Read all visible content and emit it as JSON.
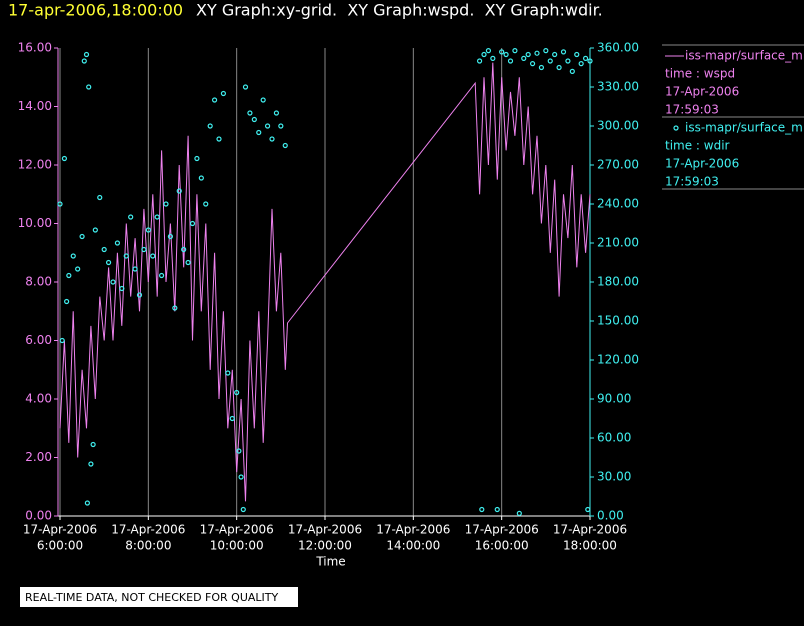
{
  "chart_data": {
    "type": "xy",
    "title": "17-apr-2006,18:00:00",
    "subtitle": "XY Graph:xy-grid.  XY Graph:wspd.  XY Graph:wdir.",
    "x_label": "Time",
    "note": "REAL-TIME DATA, NOT CHECKED FOR QUALITY",
    "grid": true,
    "xlim": [
      6,
      18
    ],
    "xticks": [
      {
        "value": 6,
        "label": [
          "17-Apr-2006",
          "6:00:00"
        ]
      },
      {
        "value": 8,
        "label": [
          "17-Apr-2006",
          "8:00:00"
        ]
      },
      {
        "value": 10,
        "label": [
          "17-Apr-2006",
          "10:00:00"
        ]
      },
      {
        "value": 12,
        "label": [
          "17-Apr-2006",
          "12:00:00"
        ]
      },
      {
        "value": 14,
        "label": [
          "17-Apr-2006",
          "14:00:00"
        ]
      },
      {
        "value": 16,
        "label": [
          "17-Apr-2006",
          "16:00:00"
        ]
      },
      {
        "value": 18,
        "label": [
          "17-Apr-2006",
          "18:00:00"
        ]
      }
    ],
    "ylim": [
      0,
      16
    ],
    "yticks": [
      {
        "value": 0,
        "label": "0.00"
      },
      {
        "value": 2,
        "label": "2.00"
      },
      {
        "value": 4,
        "label": "4.00"
      },
      {
        "value": 6,
        "label": "6.00"
      },
      {
        "value": 8,
        "label": "8.00"
      },
      {
        "value": 10,
        "label": "10.00"
      },
      {
        "value": 12,
        "label": "12.00"
      },
      {
        "value": 14,
        "label": "14.00"
      },
      {
        "value": 16,
        "label": "16.00"
      }
    ],
    "y2lim": [
      0,
      360
    ],
    "y2ticks": [
      {
        "value": 0,
        "label": "0.00"
      },
      {
        "value": 30,
        "label": "30.00"
      },
      {
        "value": 60,
        "label": "60.00"
      },
      {
        "value": 90,
        "label": "90.00"
      },
      {
        "value": 120,
        "label": "120.00"
      },
      {
        "value": 150,
        "label": "150.00"
      },
      {
        "value": 180,
        "label": "180.00"
      },
      {
        "value": 210,
        "label": "210.00"
      },
      {
        "value": 240,
        "label": "240.00"
      },
      {
        "value": 270,
        "label": "270.00"
      },
      {
        "value": 300,
        "label": "300.00"
      },
      {
        "value": 330,
        "label": "330.00"
      },
      {
        "value": 360,
        "label": "360.00"
      }
    ],
    "series": [
      {
        "name": "iss-mapr/surface_m",
        "style": "line",
        "color": "#ee82ee",
        "legend_lines": [
          "time : wspd",
          "17-Apr-2006",
          "17:59:03"
        ],
        "x": [
          6.0,
          6.1,
          6.2,
          6.3,
          6.4,
          6.5,
          6.6,
          6.7,
          6.8,
          6.9,
          7.0,
          7.1,
          7.2,
          7.3,
          7.4,
          7.5,
          7.6,
          7.7,
          7.8,
          7.9,
          8.0,
          8.1,
          8.2,
          8.3,
          8.4,
          8.5,
          8.6,
          8.7,
          8.8,
          8.9,
          9.0,
          9.1,
          9.2,
          9.3,
          9.4,
          9.5,
          9.6,
          9.7,
          9.8,
          9.9,
          10.0,
          10.1,
          10.2,
          10.3,
          10.4,
          10.5,
          10.6,
          10.7,
          10.8,
          10.9,
          11.0,
          11.1,
          11.15,
          15.4,
          15.5,
          15.6,
          15.7,
          15.8,
          15.9,
          16.0,
          16.1,
          16.2,
          16.3,
          16.4,
          16.5,
          16.6,
          16.7,
          16.8,
          16.9,
          17.0,
          17.1,
          17.2,
          17.3,
          17.4,
          17.5,
          17.6,
          17.7,
          17.8,
          17.9,
          18.0
        ],
        "values": [
          3,
          6,
          2.5,
          7,
          2,
          5,
          3,
          6.5,
          4,
          7.5,
          6,
          8.5,
          6,
          9,
          6.5,
          10,
          7.5,
          9.5,
          7,
          10.5,
          8,
          11,
          7.5,
          12.5,
          8,
          10,
          7,
          12,
          8.5,
          13,
          6,
          11,
          7,
          10,
          5,
          9,
          4,
          7,
          3,
          5,
          1.5,
          4,
          0.5,
          6,
          3,
          7,
          2.5,
          6,
          10.5,
          7,
          9,
          5,
          6.6,
          14.8,
          11,
          15,
          12,
          15.5,
          11.5,
          15,
          12.5,
          14.5,
          13,
          15,
          12,
          14,
          11,
          13,
          10,
          12,
          9,
          11.5,
          7.5,
          11,
          9.5,
          12,
          8.5,
          11,
          9,
          11
        ]
      },
      {
        "name": "iss-mapr/surface_m",
        "style": "markers",
        "axis": "y2",
        "color": "#40f0f0",
        "legend_lines": [
          "time : wdir",
          "17-Apr-2006",
          "17:59:03"
        ],
        "x": [
          6.0,
          6.05,
          6.1,
          6.15,
          6.2,
          6.3,
          6.4,
          6.5,
          6.55,
          6.6,
          6.62,
          6.65,
          6.7,
          6.75,
          6.8,
          6.9,
          7.0,
          7.1,
          7.2,
          7.3,
          7.4,
          7.5,
          7.6,
          7.7,
          7.8,
          7.9,
          8.0,
          8.1,
          8.2,
          8.3,
          8.4,
          8.5,
          8.6,
          8.7,
          8.8,
          8.9,
          9.0,
          9.1,
          9.2,
          9.3,
          9.4,
          9.5,
          9.6,
          9.7,
          9.8,
          9.9,
          10.0,
          10.05,
          10.1,
          10.15,
          10.2,
          10.3,
          10.4,
          10.5,
          10.6,
          10.7,
          10.8,
          10.9,
          11.0,
          11.1,
          15.5,
          15.55,
          15.6,
          15.7,
          15.8,
          15.9,
          16.0,
          16.1,
          16.2,
          16.3,
          16.4,
          16.5,
          16.6,
          16.7,
          16.8,
          16.9,
          17.0,
          17.1,
          17.2,
          17.3,
          17.4,
          17.5,
          17.6,
          17.7,
          17.8,
          17.9,
          17.95,
          18.0
        ],
        "values": [
          240,
          135,
          275,
          165,
          185,
          200,
          190,
          215,
          350,
          355,
          10,
          330,
          40,
          55,
          220,
          245,
          205,
          195,
          180,
          210,
          175,
          200,
          230,
          190,
          170,
          205,
          220,
          200,
          230,
          185,
          240,
          215,
          160,
          250,
          205,
          195,
          225,
          275,
          260,
          240,
          300,
          320,
          290,
          325,
          110,
          75,
          95,
          50,
          30,
          5,
          330,
          310,
          305,
          295,
          320,
          300,
          290,
          310,
          300,
          285,
          350,
          5,
          355,
          358,
          352,
          5,
          357,
          355,
          350,
          358,
          2,
          352,
          355,
          348,
          356,
          345,
          358,
          350,
          355,
          345,
          357,
          350,
          342,
          355,
          348,
          352,
          5,
          350
        ]
      }
    ]
  }
}
